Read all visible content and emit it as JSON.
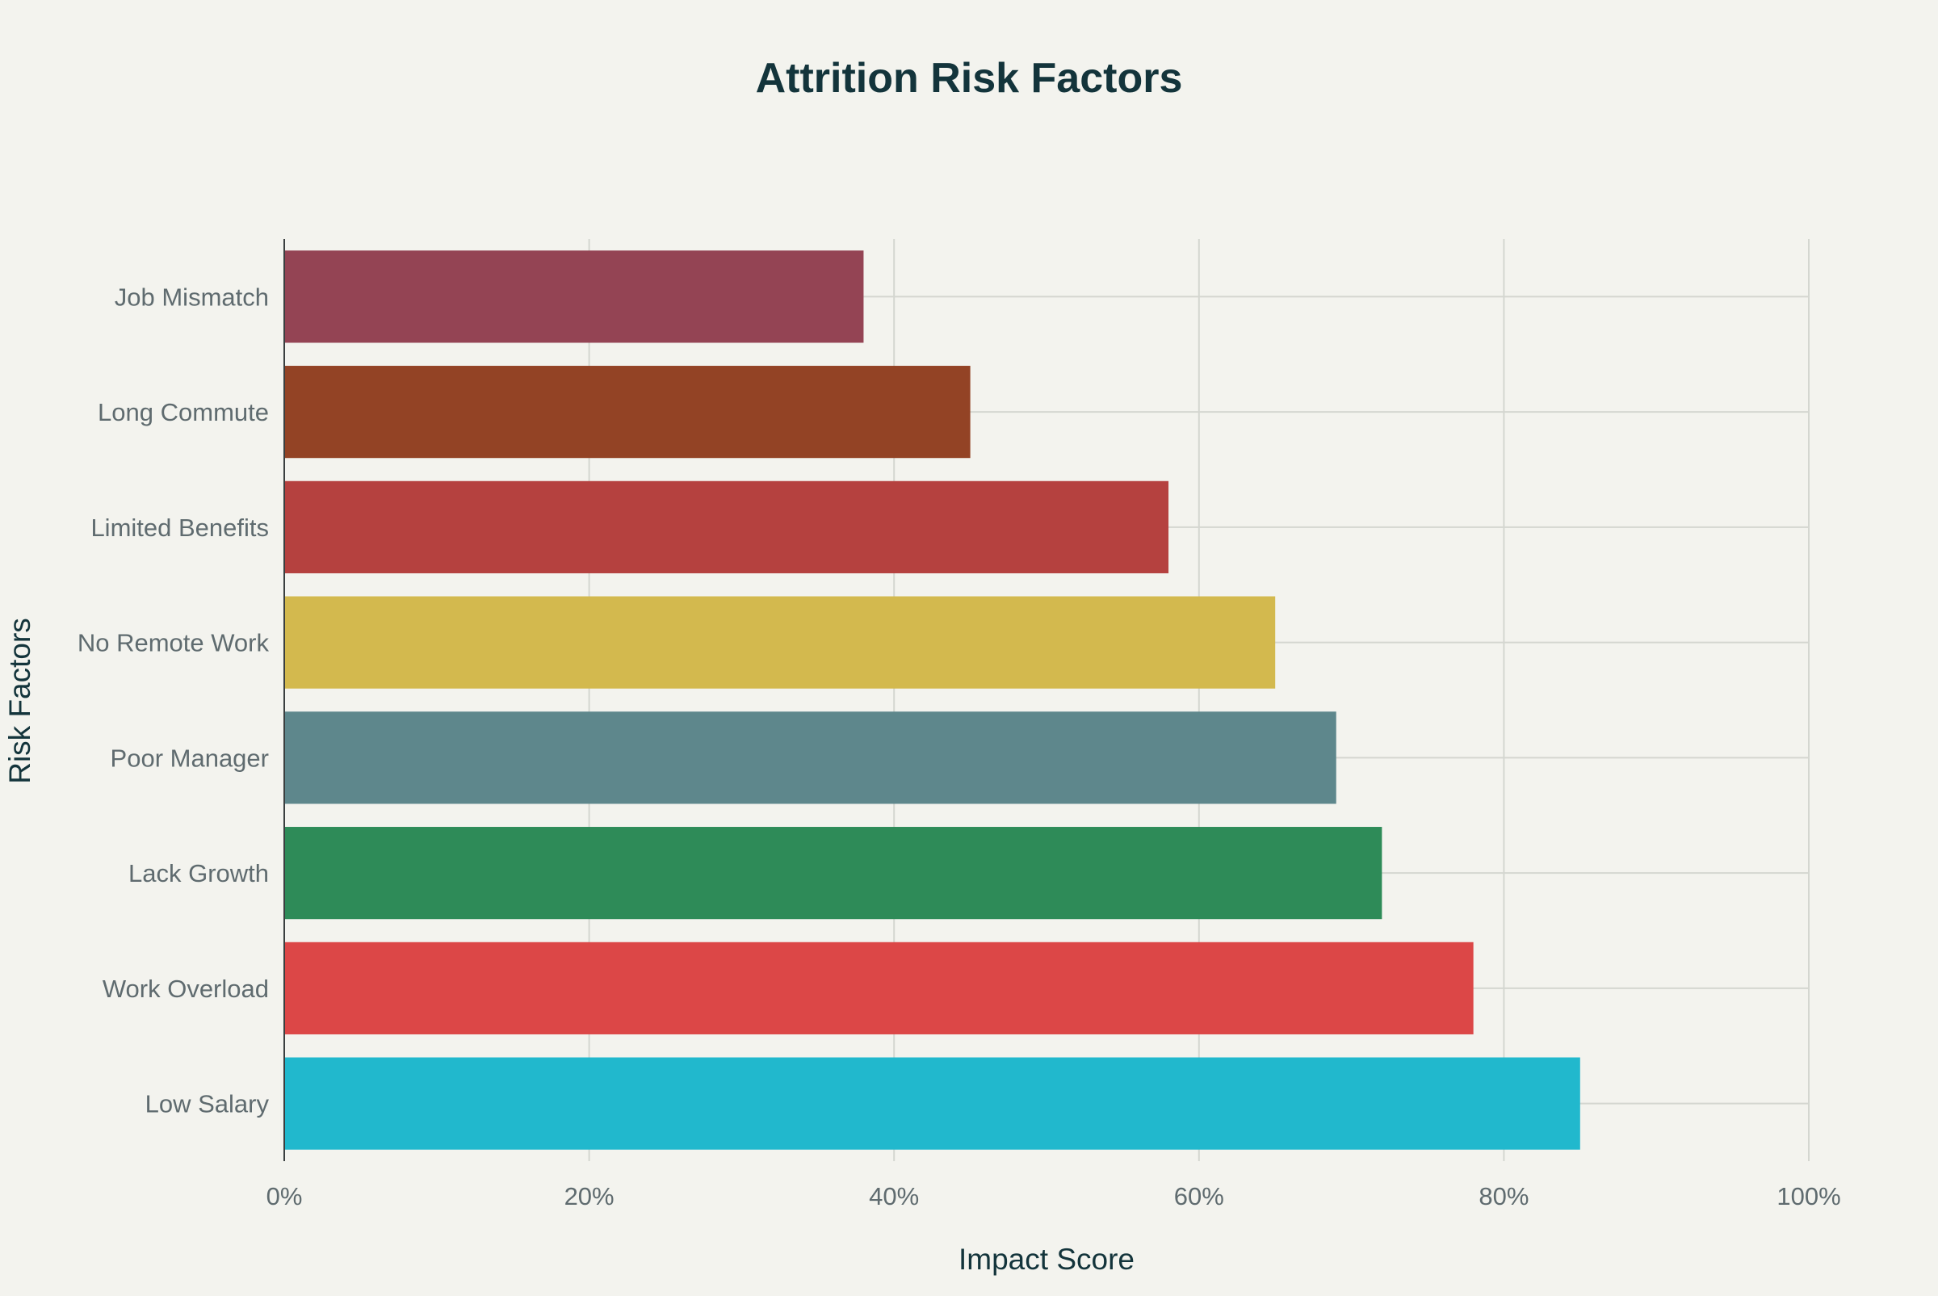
{
  "chart_data": {
    "type": "bar",
    "orientation": "horizontal",
    "title": "Attrition Risk Factors",
    "xlabel": "Impact Score",
    "ylabel": "Risk Factors",
    "xlim": [
      0,
      100
    ],
    "x_ticks": [
      0,
      20,
      40,
      60,
      80,
      100
    ],
    "x_tick_labels": [
      "0%",
      "20%",
      "40%",
      "60%",
      "80%",
      "100%"
    ],
    "grid": true,
    "categories": [
      "Low Salary",
      "Work Overload",
      "Lack Growth",
      "Poor Manager",
      "No Remote Work",
      "Limited Benefits",
      "Long Commute",
      "Job Mismatch"
    ],
    "values": [
      85,
      78,
      72,
      69,
      65,
      58,
      45,
      38
    ],
    "colors": [
      "#21b8cd",
      "#dc4747",
      "#2e8b58",
      "#5e878c",
      "#d3b94e",
      "#b5413f",
      "#934325",
      "#944454"
    ]
  }
}
